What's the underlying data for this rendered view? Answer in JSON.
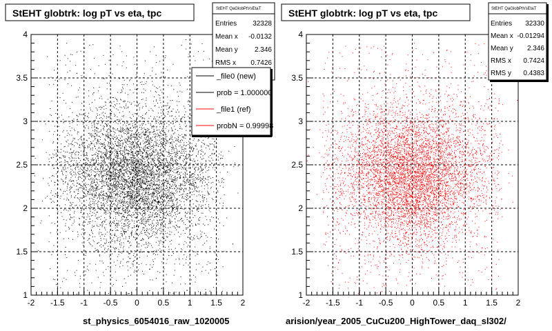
{
  "chart_data": [
    {
      "type": "scatter",
      "title": "StEHT globtrk: log pT vs eta, tpc",
      "xlabel": "st_physics_6054016_raw_1020005",
      "xlim": [
        -2,
        2
      ],
      "ylim": [
        1,
        4
      ],
      "xticks": [
        "-2",
        "-1.5",
        "-1",
        "-0.5",
        "0",
        "0.5",
        "1",
        "1.5",
        "2"
      ],
      "yticks": [
        "1",
        "1.5",
        "2",
        "2.5",
        "3",
        "3.5",
        "4"
      ],
      "grid": true,
      "marker_color": "#000000",
      "stats": {
        "header": "StEHT QaGlobPtVsEtaT",
        "rows": [
          {
            "label": "Entries",
            "value": "32328"
          },
          {
            "label": "Mean x",
            "value": "-0.0132"
          },
          {
            "label": "Mean y",
            "value": "2.346"
          },
          {
            "label": "RMS x",
            "value": "0.7426"
          }
        ]
      },
      "legend": {
        "placement": "top-right",
        "entries": [
          {
            "label": "_file0 (new)",
            "color": "#000000"
          },
          {
            "label": "prob = 1.000000",
            "color": "#000000"
          },
          {
            "label": "_file1 (ref)",
            "color": "#ff0000"
          },
          {
            "label": "probN = 0.99998",
            "color": "#ff0000"
          }
        ]
      }
    },
    {
      "type": "scatter",
      "title": "StEHT globtrk: log pT vs eta, tpc",
      "xlabel": "arision/year_2005_CuCu200_HighTower_daq_sl302/",
      "xlim": [
        -2,
        2
      ],
      "ylim": [
        1,
        4
      ],
      "xticks": [
        "-2",
        "-1.5",
        "-1",
        "-0.5",
        "0",
        "0.5",
        "1",
        "1.5",
        "2"
      ],
      "yticks": [
        "1",
        "1.5",
        "2",
        "2.5",
        "3",
        "3.5",
        "4"
      ],
      "grid": true,
      "marker_color": "#ff0000",
      "stats": {
        "header": "StEHT QaGlobPtVsEtaT",
        "rows": [
          {
            "label": "Entries",
            "value": "32330"
          },
          {
            "label": "Mean x",
            "value": "-0.01294"
          },
          {
            "label": "Mean y",
            "value": "2.346"
          },
          {
            "label": "RMS x",
            "value": "0.7424"
          },
          {
            "label": "RMS y",
            "value": "0.4383"
          }
        ]
      }
    }
  ]
}
